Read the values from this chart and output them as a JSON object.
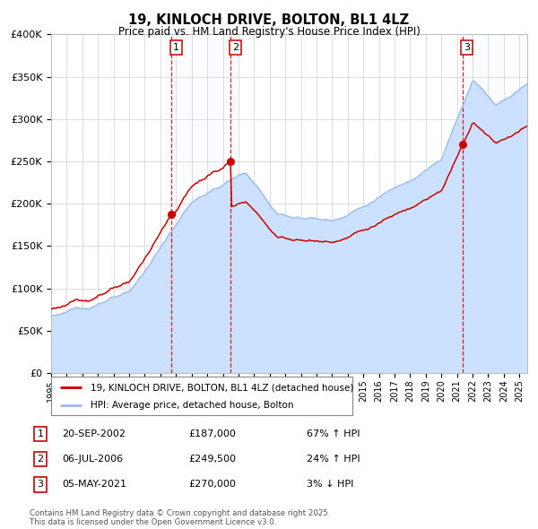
{
  "title": "19, KINLOCH DRIVE, BOLTON, BL1 4LZ",
  "subtitle": "Price paid vs. HM Land Registry's House Price Index (HPI)",
  "legend_line1": "19, KINLOCH DRIVE, BOLTON, BL1 4LZ (detached house)",
  "legend_line2": "HPI: Average price, detached house, Bolton",
  "sale1_date": "20-SEP-2002",
  "sale1_price": "£187,000",
  "sale1_hpi": "67% ↑ HPI",
  "sale1_year": 2002.72,
  "sale1_value": 187000,
  "sale2_date": "06-JUL-2006",
  "sale2_price": "£249,500",
  "sale2_hpi": "24% ↑ HPI",
  "sale2_year": 2006.51,
  "sale2_value": 249500,
  "sale3_date": "05-MAY-2021",
  "sale3_price": "£270,000",
  "sale3_hpi": "3% ↓ HPI",
  "sale3_year": 2021.34,
  "sale3_value": 270000,
  "price_color": "#cc0000",
  "hpi_color": "#99bbee",
  "hpi_fill_color": "#cce0ff",
  "background_color": "#ffffff",
  "grid_color": "#cccccc",
  "vline_color": "#cc0000",
  "shade_color": "#ddeeff",
  "ylim": [
    0,
    400000
  ],
  "xlim_start": 1995.0,
  "xlim_end": 2025.5,
  "footer": "Contains HM Land Registry data © Crown copyright and database right 2025.\nThis data is licensed under the Open Government Licence v3.0."
}
